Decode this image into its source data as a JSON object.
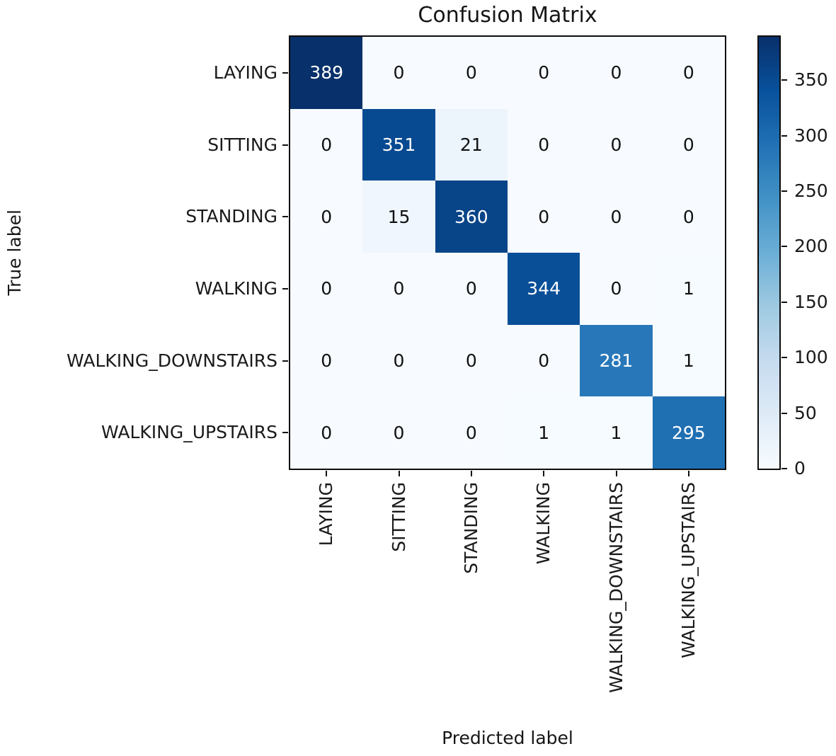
{
  "chart_data": {
    "type": "heatmap",
    "title": "Confusion Matrix",
    "xlabel": "Predicted label",
    "ylabel": "True label",
    "x_tick_labels": [
      "LAYING",
      "SITTING",
      "STANDING",
      "WALKING",
      "WALKING_DOWNSTAIRS",
      "WALKING_UPSTAIRS"
    ],
    "y_tick_labels": [
      "LAYING",
      "SITTING",
      "STANDING",
      "WALKING",
      "WALKING_DOWNSTAIRS",
      "WALKING_UPSTAIRS"
    ],
    "matrix": [
      [
        389,
        0,
        0,
        0,
        0,
        0
      ],
      [
        0,
        351,
        21,
        0,
        0,
        0
      ],
      [
        0,
        15,
        360,
        0,
        0,
        0
      ],
      [
        0,
        0,
        0,
        344,
        0,
        1
      ],
      [
        0,
        0,
        0,
        0,
        281,
        1
      ],
      [
        0,
        0,
        0,
        1,
        1,
        295
      ]
    ],
    "vmin": 0,
    "vmax": 389,
    "colormap": "Blues",
    "colormap_anchors": [
      "#f7fbff",
      "#deebf7",
      "#c6dbef",
      "#9ecae1",
      "#6baed6",
      "#4292c6",
      "#2171b5",
      "#08519c",
      "#08306b"
    ],
    "colorbar_ticks": [
      0,
      50,
      100,
      150,
      200,
      250,
      300,
      350
    ],
    "annotation_color_light": "#ffffff",
    "annotation_color_dark": "#111111",
    "spine_color": "#0d0d0d",
    "legend_position": "right-colorbar",
    "grid": false
  }
}
